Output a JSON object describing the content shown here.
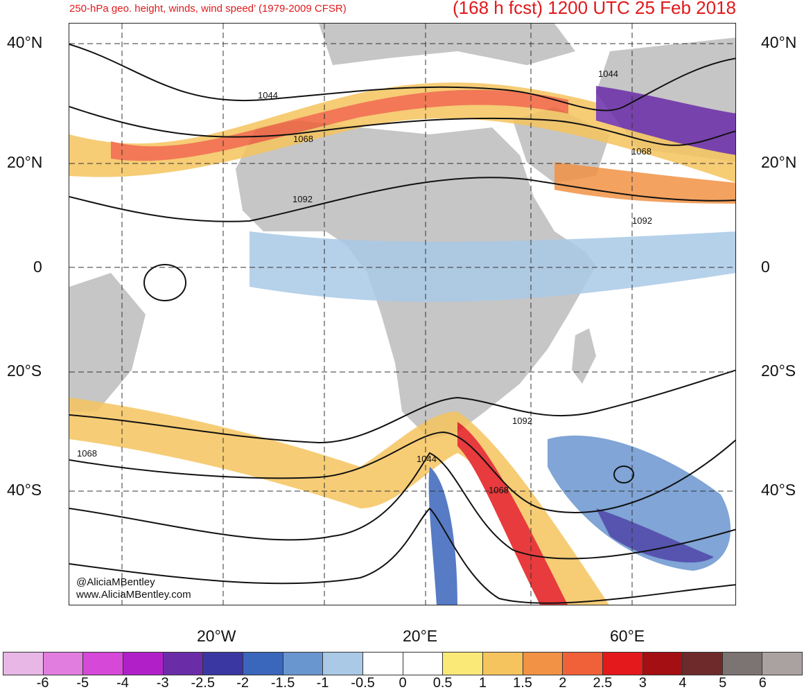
{
  "title": {
    "left": "250-hPa geo. height, winds, wind speed’ (1979-2009 CFSR)",
    "right": "(168 h fcst) 1200 UTC 25 Feb 2018"
  },
  "credit": {
    "handle": "@AliciaMBentley",
    "url": "www.AliciaMBentley.com"
  },
  "lat_labels": [
    "40°N",
    "20°N",
    "0",
    "20°S",
    "40°S"
  ],
  "lon_labels": [
    "20°W",
    "20°E",
    "60°E"
  ],
  "contour_labels": [
    "1044",
    "1068",
    "1092",
    "1044",
    "1068",
    "1092",
    "1068",
    "1044",
    "1068",
    "1092"
  ],
  "colorbar": {
    "labels": [
      "-6",
      "-5",
      "-4",
      "-3",
      "-2.5",
      "-2",
      "-1.5",
      "-1",
      "-0.5",
      "0",
      "0.5",
      "1",
      "1.5",
      "2",
      "2.5",
      "3",
      "4",
      "5",
      "6"
    ],
    "colors": [
      "#e9b7e6",
      "#e27de0",
      "#d548d8",
      "#b11fc9",
      "#6b2ca8",
      "#3a37a2",
      "#3a66bb",
      "#6a96cf",
      "#a9c9e6",
      "#ffffff",
      "#ffffff",
      "#fbe977",
      "#f5c45e",
      "#f29245",
      "#f0613a",
      "#e3191c",
      "#a30f12",
      "#6e2a2b",
      "#7c7472",
      "#aaa2a0"
    ]
  },
  "map_colors": {
    "land": "#c6c6c6",
    "contour": "#111111",
    "grid": "#333333"
  }
}
